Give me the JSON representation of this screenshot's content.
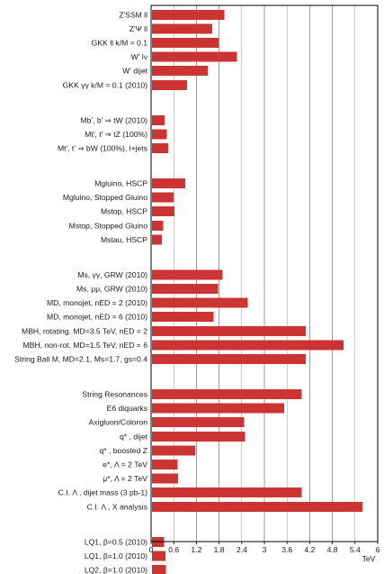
{
  "chart_data": {
    "type": "bar",
    "orientation": "horizontal",
    "title": "",
    "xlabel": "TeV",
    "ylabel": "",
    "xlim": [
      0,
      6
    ],
    "x_ticks": [
      "0",
      "0.6",
      "1.2",
      "1.8",
      "2.4",
      "3",
      "3.6",
      "4.2",
      "4.8",
      "5.4",
      "6"
    ],
    "grid": "vertical",
    "legend": "none",
    "bar_color": "#cc3333",
    "groups": [
      {
        "categories": [
          "Z'SSM ll",
          "Z'Ψ ll",
          "GKK ll k/M = 0.1",
          "W' lν",
          "W' dijet",
          "GKK γγ k/M = 0.1 (2010)"
        ],
        "values": [
          1.94,
          1.62,
          1.78,
          2.27,
          1.5,
          0.95
        ]
      },
      {
        "categories": [
          "Mb', b' ⇒ tW (2010)",
          "Mt', t' ⇒ tZ (100%)",
          "Mt', t' ⇒ bW (100%), l+jets"
        ],
        "values": [
          0.36,
          0.42,
          0.45
        ]
      },
      {
        "categories": [
          "Mgluino, HSCP",
          "Mgluino, Stopped Gluino",
          "Mstop, HSCP",
          "Mstop, Stopped Gluino",
          "Mstau, HSCP"
        ],
        "values": [
          0.9,
          0.6,
          0.62,
          0.32,
          0.29
        ]
      },
      {
        "categories": [
          "Ms, γγ, GRW (2010)",
          "Ms, μμ, GRW (2010)",
          "MD, monojet, nED = 2 (2010)",
          "MD, monojet, nED = 6 (2010)",
          "MBH, rotating, MD=3.5 TeV, nED = 2",
          "MBH, non-rot, MD=1.5 TeV, nED = 6",
          "String Ball M, MD=2.1, Ms=1.7, gs=0.4"
        ],
        "values": [
          1.89,
          1.77,
          2.56,
          1.66,
          4.1,
          5.1,
          4.1
        ]
      },
      {
        "categories": [
          "String Resonances",
          "E6 diquarks",
          "Axigluon/Coloron",
          "q* , dijet",
          "q* , boosted Z",
          "e*, Λ = 2 TeV",
          "μ*, Λ = 2 TeV",
          "C.I. Λ , dijet mass (3 pb-1)",
          "C.I. Λ , X analysis"
        ],
        "values": [
          3.99,
          3.52,
          2.47,
          2.49,
          1.17,
          0.7,
          0.72,
          3.99,
          5.6
        ]
      },
      {
        "categories": [
          "LQ1, β=0.5 (2010)",
          "LQ1, β=1.0 (2010)",
          "LQ2, β=1.0 (2010)"
        ],
        "values": [
          0.34,
          0.38,
          0.39
        ]
      }
    ]
  }
}
